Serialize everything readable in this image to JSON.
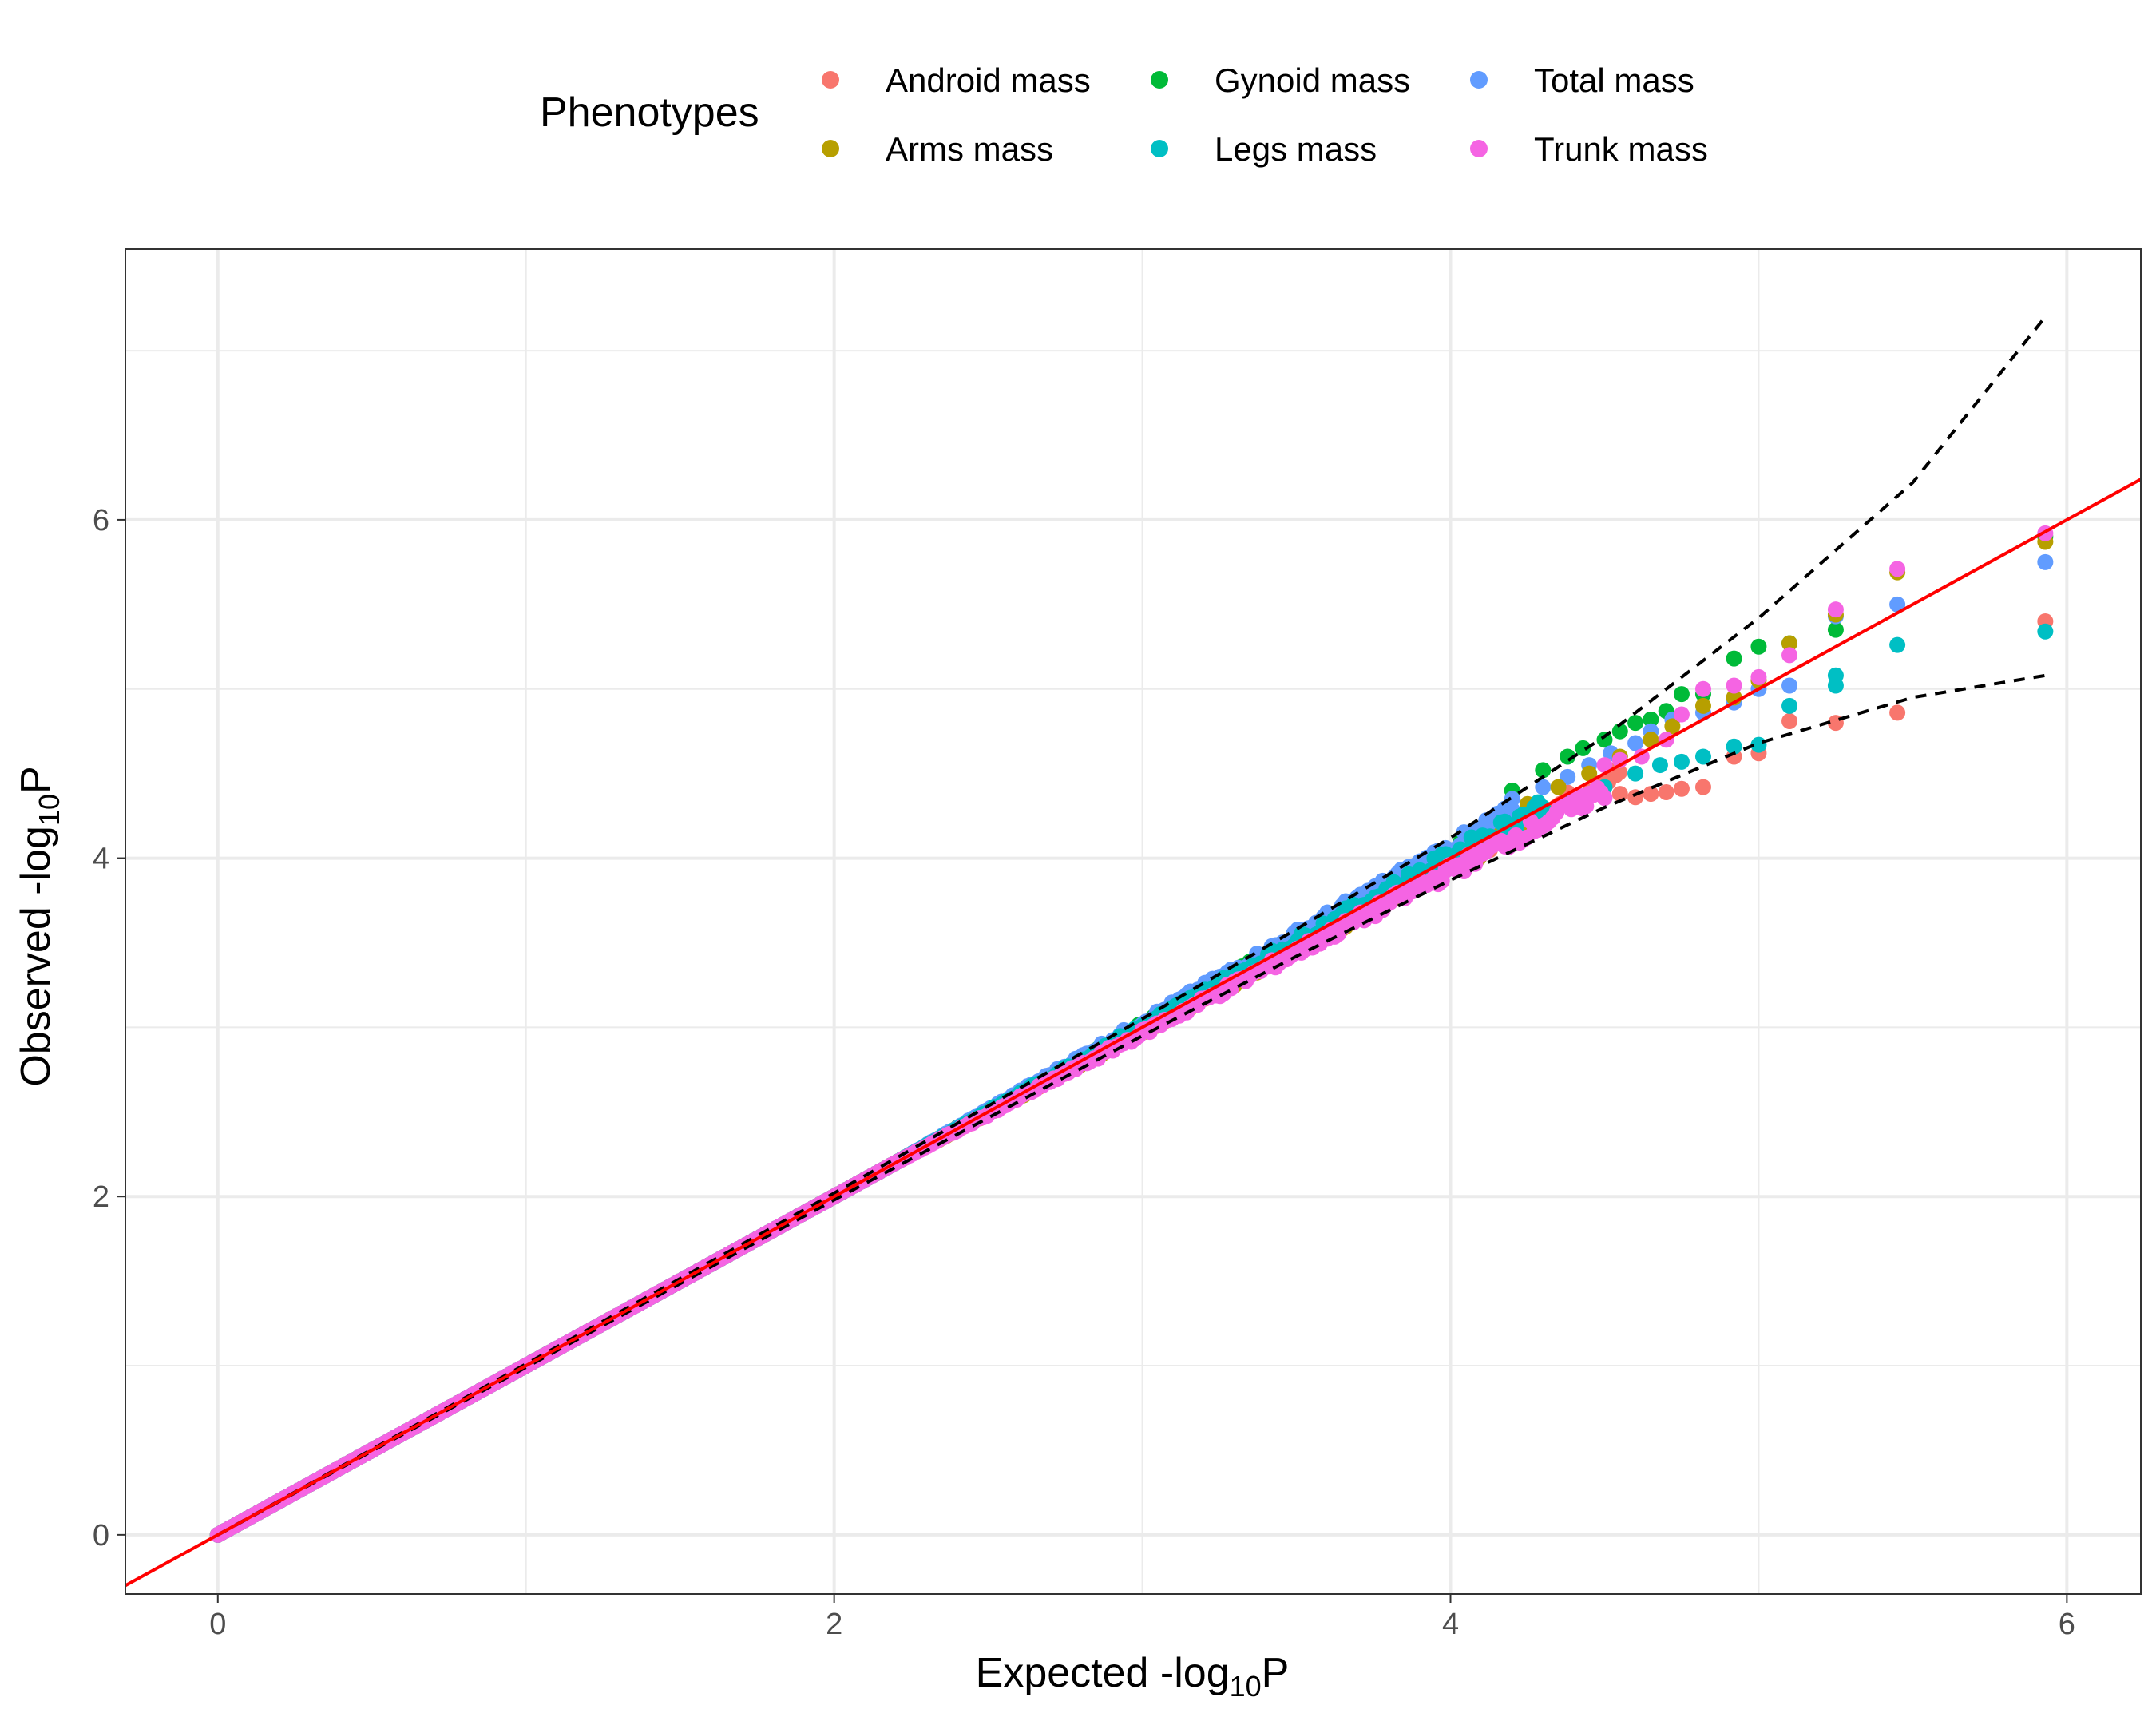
{
  "chart_data": {
    "type": "scatter",
    "title": "",
    "xlabel": {
      "main": "Expected -log",
      "sub": "10",
      "tail": "P"
    },
    "ylabel": {
      "main": "Observed -log",
      "sub": "10",
      "tail": "P"
    },
    "xlim": [
      -0.3,
      6.24
    ],
    "ylim": [
      -0.35,
      7.6
    ],
    "x_ticks": [
      0,
      2,
      4,
      6
    ],
    "y_ticks": [
      0,
      2,
      4,
      6
    ],
    "x_tick_labels": [
      "0",
      "2",
      "4",
      "6"
    ],
    "y_tick_labels": [
      "0",
      "2",
      "4",
      "6"
    ],
    "grid": true,
    "legend": {
      "title": "Phenotypes",
      "position": "top",
      "entries": [
        {
          "name": "Android mass",
          "color": "#F8766D"
        },
        {
          "name": "Gynoid mass",
          "color": "#00BA38"
        },
        {
          "name": "Total mass",
          "color": "#619CFF"
        },
        {
          "name": "Arms mass",
          "color": "#B79F00"
        },
        {
          "name": "Legs mass",
          "color": "#00BFC4"
        },
        {
          "name": "Trunk  mass",
          "color": "#F564E3"
        }
      ]
    },
    "reference_line": {
      "color": "#FF0000",
      "slope": 1,
      "intercept": 0
    },
    "confidence_band": {
      "style": "dashed",
      "color": "#000000",
      "upper": [
        [
          0,
          0
        ],
        [
          2,
          2.02
        ],
        [
          3,
          3.05
        ],
        [
          3.5,
          3.58
        ],
        [
          4,
          4.12
        ],
        [
          4.5,
          4.72
        ],
        [
          5,
          5.42
        ],
        [
          5.5,
          6.22
        ],
        [
          5.93,
          7.2
        ]
      ],
      "lower": [
        [
          0,
          0
        ],
        [
          2,
          1.98
        ],
        [
          3,
          2.95
        ],
        [
          3.5,
          3.42
        ],
        [
          4,
          3.87
        ],
        [
          4.5,
          4.3
        ],
        [
          5,
          4.68
        ],
        [
          5.5,
          4.95
        ],
        [
          5.93,
          5.08
        ]
      ]
    },
    "series": [
      {
        "name": "Android mass",
        "color": "#F8766D",
        "tail": [
          [
            4.55,
            4.38
          ],
          [
            4.6,
            4.36
          ],
          [
            4.65,
            4.38
          ],
          [
            4.7,
            4.39
          ],
          [
            4.75,
            4.41
          ],
          [
            4.82,
            4.42
          ],
          [
            4.92,
            4.6
          ],
          [
            5.0,
            4.62
          ],
          [
            5.1,
            4.81
          ],
          [
            5.25,
            4.8
          ],
          [
            5.45,
            4.86
          ],
          [
            5.93,
            5.4
          ]
        ]
      },
      {
        "name": "Gynoid mass",
        "color": "#00BA38",
        "tail": [
          [
            4.2,
            4.4
          ],
          [
            4.3,
            4.52
          ],
          [
            4.38,
            4.6
          ],
          [
            4.43,
            4.65
          ],
          [
            4.5,
            4.7
          ],
          [
            4.55,
            4.75
          ],
          [
            4.6,
            4.8
          ],
          [
            4.65,
            4.82
          ],
          [
            4.7,
            4.87
          ],
          [
            4.75,
            4.97
          ],
          [
            4.82,
            4.97
          ],
          [
            4.92,
            5.18
          ],
          [
            5.0,
            5.25
          ],
          [
            5.1,
            5.27
          ],
          [
            5.25,
            5.35
          ],
          [
            5.93,
            5.9
          ]
        ]
      },
      {
        "name": "Total mass",
        "color": "#619CFF",
        "tail": [
          [
            4.2,
            4.35
          ],
          [
            4.3,
            4.42
          ],
          [
            4.38,
            4.48
          ],
          [
            4.45,
            4.55
          ],
          [
            4.52,
            4.62
          ],
          [
            4.6,
            4.68
          ],
          [
            4.65,
            4.75
          ],
          [
            4.72,
            4.82
          ],
          [
            4.82,
            4.86
          ],
          [
            4.92,
            4.92
          ],
          [
            5.0,
            5.0
          ],
          [
            5.1,
            5.02
          ],
          [
            5.25,
            5.43
          ],
          [
            5.45,
            5.5
          ],
          [
            5.93,
            5.75
          ]
        ]
      },
      {
        "name": "Arms mass",
        "color": "#B79F00",
        "tail": [
          [
            4.25,
            4.32
          ],
          [
            4.35,
            4.42
          ],
          [
            4.45,
            4.5
          ],
          [
            4.55,
            4.6
          ],
          [
            4.65,
            4.7
          ],
          [
            4.72,
            4.78
          ],
          [
            4.82,
            4.9
          ],
          [
            4.92,
            4.95
          ],
          [
            5.0,
            5.05
          ],
          [
            5.1,
            5.27
          ],
          [
            5.25,
            5.44
          ],
          [
            5.45,
            5.69
          ],
          [
            5.93,
            5.87
          ]
        ]
      },
      {
        "name": "Legs mass",
        "color": "#00BFC4",
        "tail": [
          [
            4.3,
            4.3
          ],
          [
            4.4,
            4.35
          ],
          [
            4.5,
            4.42
          ],
          [
            4.6,
            4.5
          ],
          [
            4.68,
            4.55
          ],
          [
            4.75,
            4.57
          ],
          [
            4.82,
            4.6
          ],
          [
            4.92,
            4.66
          ],
          [
            5.0,
            4.67
          ],
          [
            5.1,
            4.9
          ],
          [
            5.25,
            5.08
          ],
          [
            5.25,
            5.02
          ],
          [
            5.45,
            5.26
          ],
          [
            5.93,
            5.34
          ]
        ]
      },
      {
        "name": "Trunk  mass",
        "color": "#F564E3",
        "tail": [
          [
            4.5,
            4.55
          ],
          [
            4.55,
            4.58
          ],
          [
            4.62,
            4.6
          ],
          [
            4.7,
            4.7
          ],
          [
            4.75,
            4.85
          ],
          [
            4.82,
            5.0
          ],
          [
            4.92,
            5.02
          ],
          [
            5.0,
            5.07
          ],
          [
            5.1,
            5.2
          ],
          [
            5.25,
            5.47
          ],
          [
            5.45,
            5.71
          ],
          [
            5.93,
            5.92
          ]
        ]
      }
    ]
  }
}
